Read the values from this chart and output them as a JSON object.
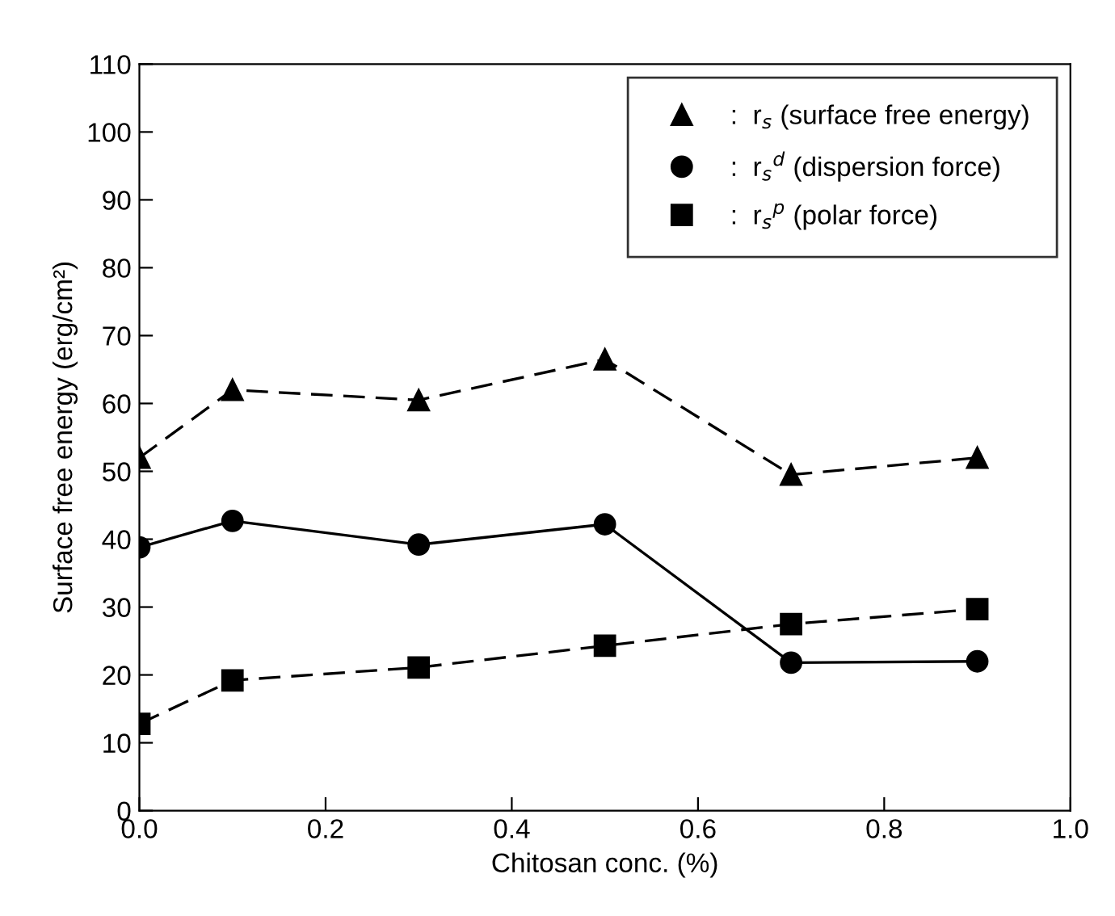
{
  "chart_data": {
    "type": "line",
    "xlabel": "Chitosan conc. (%)",
    "ylabel": "Surface free energy (erg/cm²)",
    "x": [
      0,
      0.1,
      0.3,
      0.5,
      0.7,
      0.9
    ],
    "series": [
      {
        "name": ":  r$_{s}$ (surface free energy)",
        "color": "#000000",
        "marker": "triangle",
        "line_style": "dashed",
        "values": [
          52,
          62,
          60.5,
          66.5,
          49.5,
          52
        ]
      },
      {
        "name": ":  r$_{s}$$^{d}$ (dispersion force)",
        "color": "#000000",
        "marker": "circle",
        "line_style": "solid",
        "values": [
          38.8,
          42.7,
          39.2,
          42.2,
          21.8,
          22
        ]
      },
      {
        "name": ":  r$_{s}$$^{p}$ (polar force)",
        "color": "#000000",
        "marker": "square",
        "line_style": "dashed",
        "values": [
          12.8,
          19.2,
          21.1,
          24.3,
          27.5,
          29.7
        ]
      }
    ],
    "xlim": [
      0,
      1.0
    ],
    "xticks": [
      {
        "value": 0,
        "label": "0.0"
      },
      0.2,
      0.4,
      0.6,
      0.8,
      {
        "value": 1.0,
        "label": "1.0"
      }
    ],
    "ylim": [
      0,
      110
    ],
    "yticks": [
      0,
      10,
      20,
      30,
      40,
      50,
      60,
      70,
      80,
      90,
      100,
      110
    ],
    "grid": false,
    "legend": "top right"
  }
}
